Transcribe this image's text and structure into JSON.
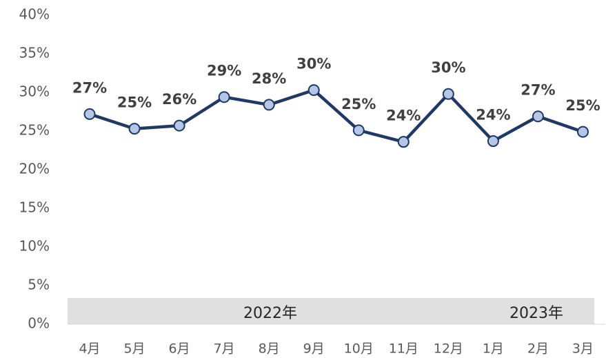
{
  "chart_data": {
    "type": "line",
    "categories": [
      "4月",
      "5月",
      "6月",
      "7月",
      "8月",
      "9月",
      "10月",
      "11月",
      "12月",
      "1月",
      "2月",
      "3月"
    ],
    "series": [
      {
        "color": "#203864",
        "values": [
          27.2,
          25.3,
          25.7,
          29.4,
          28.4,
          30.3,
          25.1,
          23.6,
          29.8,
          23.7,
          26.9,
          24.9
        ],
        "value_labels": [
          "27%",
          "25%",
          "26%",
          "29%",
          "28%",
          "30%",
          "25%",
          "24%",
          "30%",
          "24%",
          "27%",
          "25%"
        ]
      }
    ],
    "marker_color": "#b4c7e7",
    "ylim": [
      0,
      40
    ],
    "yticks": [
      {
        "value": 0,
        "label": "0%"
      },
      {
        "value": 5,
        "label": "5%"
      },
      {
        "value": 10,
        "label": "10%"
      },
      {
        "value": 15,
        "label": "15%"
      },
      {
        "value": 20,
        "label": "20%"
      },
      {
        "value": 25,
        "label": "25%"
      },
      {
        "value": 30,
        "label": "30%"
      },
      {
        "value": 35,
        "label": "35%"
      },
      {
        "value": 40,
        "label": "40%"
      }
    ],
    "annotations": [
      "2022年",
      "2023年"
    ],
    "grid": false
  }
}
